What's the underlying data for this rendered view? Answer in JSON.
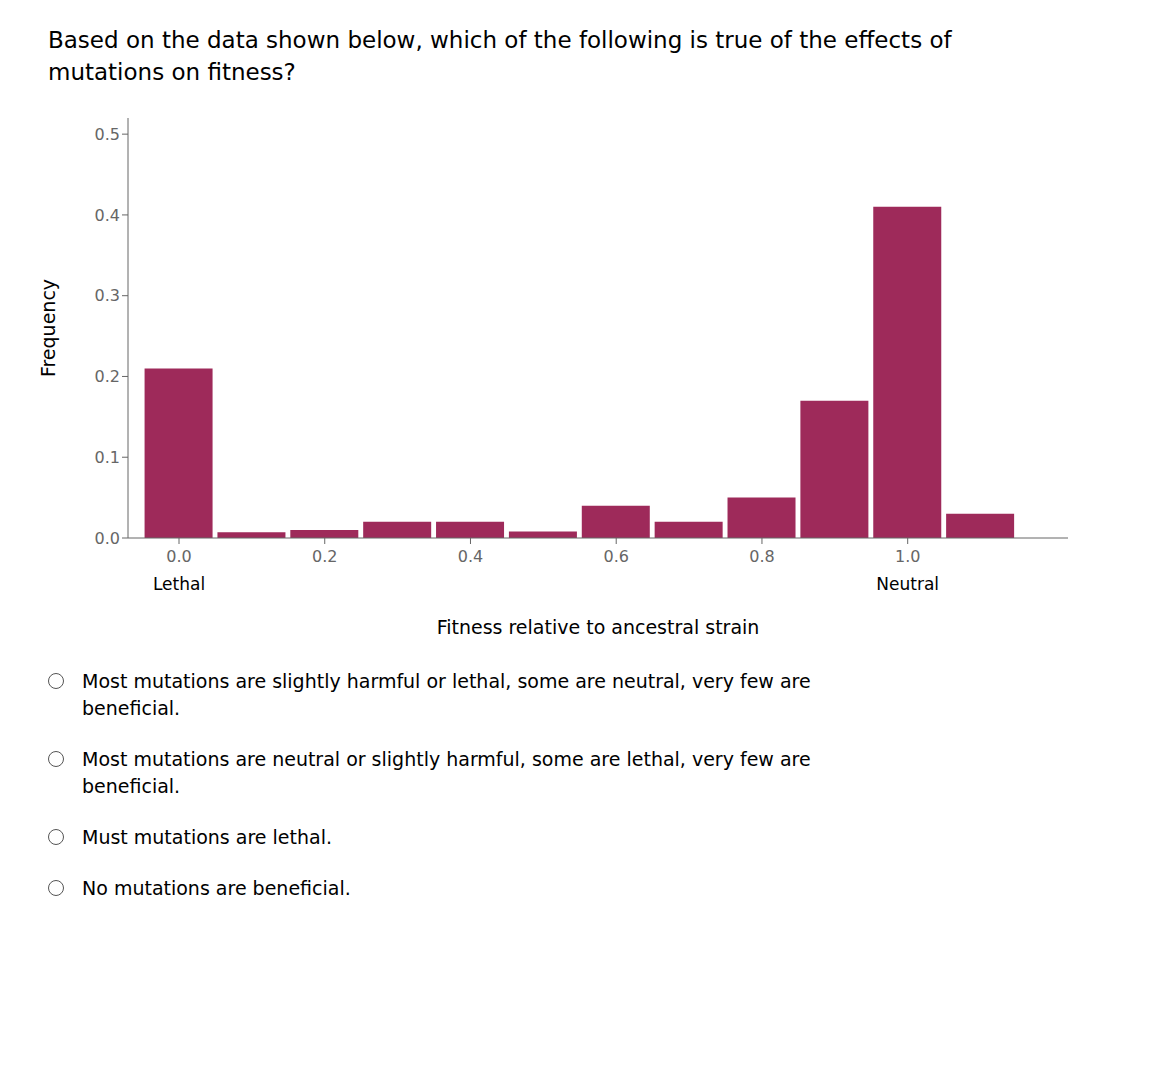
{
  "chart_data": {
    "type": "bar",
    "title": "Based on the data shown below, which of the following is true of the effects of\nmutations on fitness?",
    "x": [
      0.0,
      0.1,
      0.2,
      0.3,
      0.4,
      0.5,
      0.6,
      0.7,
      0.8,
      0.9,
      1.0,
      1.1
    ],
    "values": [
      0.21,
      0.007,
      0.01,
      0.02,
      0.02,
      0.008,
      0.04,
      0.02,
      0.05,
      0.17,
      0.41,
      0.03
    ],
    "color": "#9e2a5a",
    "xlabel": "Fitness relative to ancestral strain",
    "ylabel": "Frequency",
    "xlim": [
      -0.07,
      1.22
    ],
    "ylim": [
      0.0,
      0.52
    ],
    "xticks": [
      {
        "value": 0,
        "label": "0.0"
      },
      0.2,
      0.4,
      0.6,
      0.8,
      {
        "value": 1,
        "label": "1.0"
      }
    ],
    "yticks": [
      {
        "value": 0,
        "label": "0.0"
      },
      0.1,
      0.2,
      0.3,
      0.4,
      0.5
    ],
    "annotations": [
      {
        "text": "Lethal",
        "x": 0.0
      },
      {
        "text": "Neutral",
        "x": 1.0
      }
    ],
    "choices": [
      "Most mutations are slightly harmful or lethal, some are neutral, very few are\nbeneficial.",
      "Most mutations are neutral or slightly harmful, some are lethal, very few are\nbeneficial.",
      "Must mutations are lethal.",
      "No mutations are beneficial."
    ]
  }
}
